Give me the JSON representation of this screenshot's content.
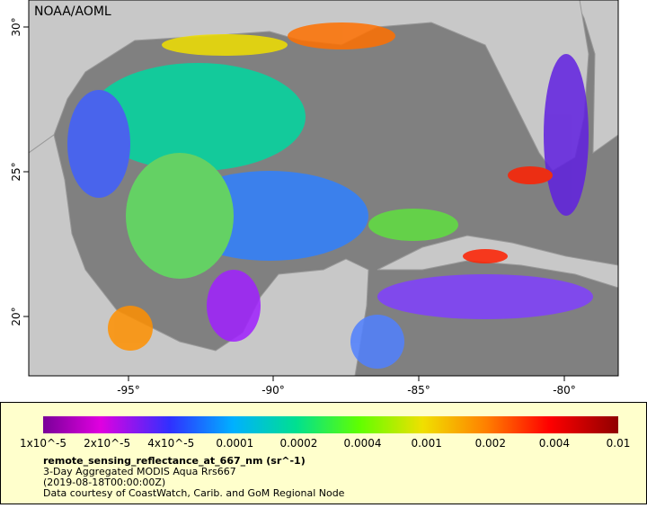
{
  "map": {
    "credit": "NOAA/AOML",
    "lon_labels": [
      "-95°",
      "-90°",
      "-85°",
      "-80°"
    ],
    "lat_labels": [
      "20°",
      "25°",
      "30°"
    ]
  },
  "colorbar": {
    "labels": [
      "1x10^-5",
      "2x10^-5",
      "4x10^-5",
      "0.0001",
      "0.0002",
      "0.0004",
      "0.001",
      "0.002",
      "0.004",
      "0.01"
    ]
  },
  "caption": {
    "variable": "remote_sensing_reflectance_at_667_nm (sr^-1)",
    "product": "3-Day Aggregated MODIS Aqua Rrs667",
    "time": "(2019-08-18T00:00:00Z)",
    "source": "Data courtesy of CoastWatch, Carib. and GoM Regional Node"
  }
}
